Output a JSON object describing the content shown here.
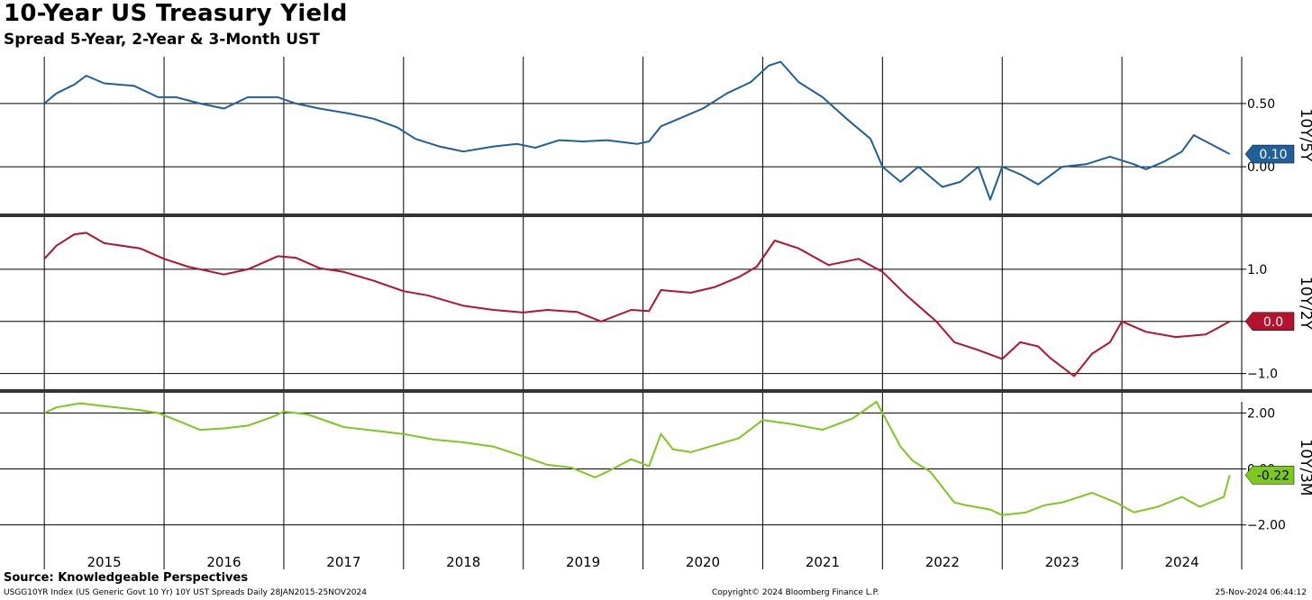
{
  "title": "10-Year US Treasury Yield",
  "subtitle": "Spread 5-Year, 2-Year & 3-Month UST",
  "source": "Source: Knowledgeable Perspectives",
  "footer": {
    "left": "USGG10YR Index (US Generic Govt 10 Yr) 10Y UST Spreads  Daily 28JAN2015-25NOV2024",
    "center": "Copyright© 2024 Bloomberg Finance L.P.",
    "right": "25-Nov-2024 06:44:12"
  },
  "colors": {
    "blue": "#1f5f9c",
    "red": "#b5122d",
    "green": "#7dc81c",
    "grid": "#000000"
  },
  "chart_data": [
    {
      "type": "line",
      "axis_label": "10Y/5Y",
      "ylim": [
        -0.37,
        0.87
      ],
      "yticks": [
        {
          "v": 0.5,
          "label": "0.50"
        },
        {
          "v": 0.0,
          "label": "0.00"
        }
      ],
      "last_value_label": "0.10",
      "last_value": 0.1,
      "grid": true,
      "series": [
        {
          "color": "#1f5f9c",
          "x": [
            2015.0,
            2015.1,
            2015.25,
            2015.35,
            2015.5,
            2015.75,
            2015.95,
            2016.1,
            2016.3,
            2016.5,
            2016.7,
            2016.95,
            2017.1,
            2017.3,
            2017.55,
            2017.75,
            2017.95,
            2018.1,
            2018.3,
            2018.5,
            2018.75,
            2018.95,
            2019.1,
            2019.3,
            2019.5,
            2019.7,
            2019.95,
            2020.05,
            2020.15,
            2020.3,
            2020.5,
            2020.7,
            2020.9,
            2021.05,
            2021.15,
            2021.3,
            2021.5,
            2021.7,
            2021.9,
            2022.0,
            2022.15,
            2022.3,
            2022.5,
            2022.65,
            2022.8,
            2022.9,
            2023.0,
            2023.15,
            2023.3,
            2023.5,
            2023.7,
            2023.9,
            2024.1,
            2024.2,
            2024.35,
            2024.5,
            2024.6,
            2024.9
          ],
          "y": [
            0.5,
            0.58,
            0.65,
            0.72,
            0.66,
            0.64,
            0.55,
            0.55,
            0.5,
            0.46,
            0.55,
            0.55,
            0.5,
            0.46,
            0.42,
            0.38,
            0.31,
            0.22,
            0.16,
            0.12,
            0.16,
            0.18,
            0.15,
            0.21,
            0.2,
            0.21,
            0.18,
            0.2,
            0.32,
            0.38,
            0.46,
            0.58,
            0.67,
            0.8,
            0.83,
            0.67,
            0.55,
            0.38,
            0.22,
            0.0,
            -0.12,
            0.0,
            -0.16,
            -0.12,
            0.0,
            -0.26,
            0.0,
            -0.06,
            -0.14,
            0.0,
            0.02,
            0.08,
            0.02,
            -0.02,
            0.04,
            0.12,
            0.25,
            0.1
          ]
        }
      ]
    },
    {
      "type": "line",
      "axis_label": "10Y/2Y",
      "ylim": [
        -1.3,
        2.0
      ],
      "yticks": [
        {
          "v": 1.0,
          "label": "1.0"
        },
        {
          "v": 0.0,
          "label": "0.0"
        },
        {
          "v": -1.0,
          "label": "−1.0"
        }
      ],
      "last_value_label": "0.0",
      "last_value": 0.0,
      "grid": true,
      "series": [
        {
          "color": "#b5122d",
          "x": [
            2015.0,
            2015.1,
            2015.25,
            2015.35,
            2015.5,
            2015.8,
            2016.0,
            2016.2,
            2016.5,
            2016.7,
            2016.95,
            2017.1,
            2017.3,
            2017.5,
            2017.75,
            2018.0,
            2018.2,
            2018.5,
            2018.75,
            2019.0,
            2019.2,
            2019.45,
            2019.65,
            2019.9,
            2020.05,
            2020.15,
            2020.4,
            2020.6,
            2020.8,
            2020.95,
            2021.1,
            2021.3,
            2021.55,
            2021.8,
            2022.0,
            2022.2,
            2022.45,
            2022.6,
            2022.8,
            2022.88,
            2023.0,
            2023.15,
            2023.3,
            2023.4,
            2023.6,
            2023.75,
            2023.9,
            2024.0,
            2024.2,
            2024.45,
            2024.7,
            2024.9
          ],
          "y": [
            1.2,
            1.45,
            1.67,
            1.7,
            1.5,
            1.4,
            1.2,
            1.05,
            0.9,
            1.0,
            1.25,
            1.22,
            1.02,
            0.95,
            0.78,
            0.58,
            0.5,
            0.3,
            0.22,
            0.17,
            0.22,
            0.18,
            0.0,
            0.22,
            0.2,
            0.6,
            0.55,
            0.66,
            0.85,
            1.05,
            1.55,
            1.4,
            1.08,
            1.2,
            0.95,
            0.5,
            0.0,
            -0.4,
            -0.55,
            -0.62,
            -0.72,
            -0.4,
            -0.48,
            -0.7,
            -1.05,
            -0.62,
            -0.4,
            0.0,
            -0.2,
            -0.3,
            -0.25,
            0.0
          ]
        }
      ]
    },
    {
      "type": "line",
      "axis_label": "10Y/3M",
      "ylim": [
        -2.3,
        2.4
      ],
      "yticks": [
        {
          "v": 2.0,
          "label": "2.00"
        },
        {
          "v": 0.0,
          "label": "0.00"
        },
        {
          "v": -2.0,
          "label": "−2.00"
        }
      ],
      "last_value_label": "-0.22",
      "last_value": -0.22,
      "grid": true,
      "series": [
        {
          "color": "#7dc81c",
          "x": [
            2015.0,
            2015.1,
            2015.3,
            2015.5,
            2015.8,
            2015.95,
            2016.1,
            2016.3,
            2016.5,
            2016.7,
            2016.9,
            2017.0,
            2017.2,
            2017.5,
            2017.7,
            2018.0,
            2018.25,
            2018.5,
            2018.75,
            2019.0,
            2019.2,
            2019.4,
            2019.6,
            2019.7,
            2019.9,
            2020.05,
            2020.15,
            2020.25,
            2020.4,
            2020.6,
            2020.8,
            2021.0,
            2021.25,
            2021.5,
            2021.75,
            2021.95,
            2022.15,
            2022.25,
            2022.4,
            2022.6,
            2022.7,
            2022.9,
            2023.0,
            2023.2,
            2023.35,
            2023.5,
            2023.75,
            2023.95,
            2024.1,
            2024.3,
            2024.5,
            2024.65,
            2024.85,
            2024.9
          ],
          "y": [
            2.0,
            2.2,
            2.35,
            2.25,
            2.1,
            2.0,
            1.75,
            1.4,
            1.45,
            1.55,
            1.85,
            2.05,
            1.95,
            1.5,
            1.4,
            1.25,
            1.05,
            0.95,
            0.8,
            0.45,
            0.15,
            0.05,
            -0.3,
            -0.1,
            0.35,
            0.1,
            1.25,
            0.7,
            0.6,
            0.85,
            1.1,
            1.75,
            1.6,
            1.4,
            1.8,
            2.4,
            0.8,
            0.3,
            -0.1,
            -1.2,
            -1.3,
            -1.45,
            -1.65,
            -1.55,
            -1.3,
            -1.2,
            -0.85,
            -1.2,
            -1.55,
            -1.35,
            -1.0,
            -1.35,
            -1.0,
            -0.22
          ]
        }
      ]
    }
  ],
  "x_axis": {
    "labels": [
      "2015",
      "2016",
      "2017",
      "2018",
      "2019",
      "2020",
      "2021",
      "2022",
      "2023",
      "2024"
    ],
    "range": [
      2014.63,
      2025.0
    ]
  }
}
